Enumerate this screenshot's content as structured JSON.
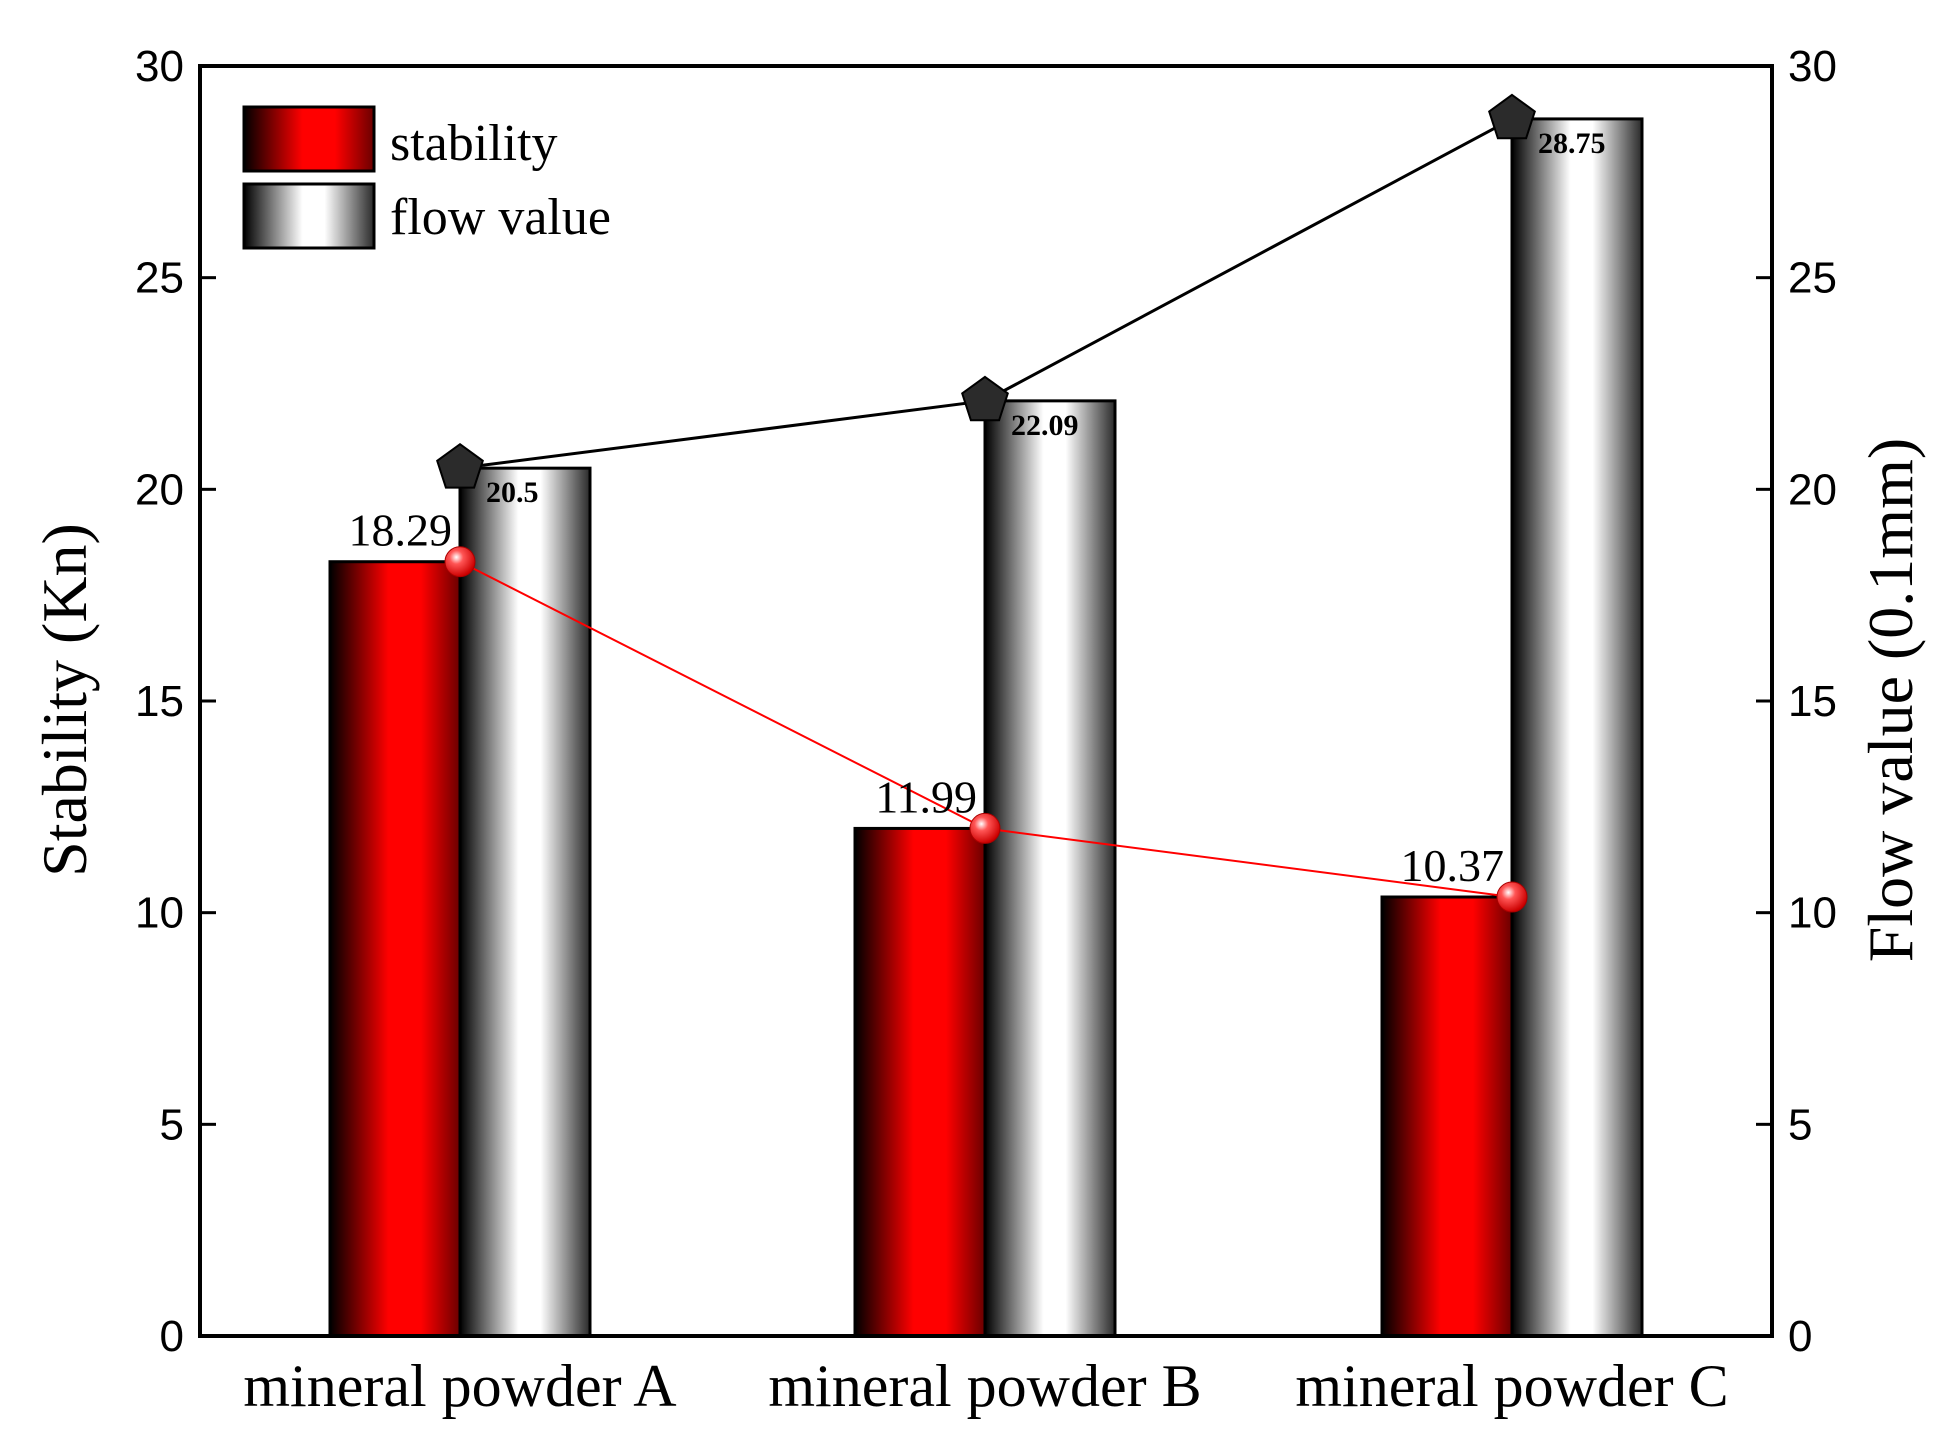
{
  "chart_data": {
    "type": "bar",
    "categories": [
      "mineral powder A",
      "mineral powder B",
      "mineral powder C"
    ],
    "series": [
      {
        "name": "stability",
        "axis": "left",
        "values": [
          18.29,
          11.99,
          10.37
        ],
        "value_labels": [
          "18.29",
          "11.99",
          "10.37"
        ],
        "color": "#ff0000"
      },
      {
        "name": "flow value",
        "axis": "right",
        "values": [
          20.5,
          22.09,
          28.75
        ],
        "value_labels": [
          "20.5",
          "22.09",
          "28.75"
        ],
        "color": "#ffffff"
      }
    ],
    "overlay_lines": [
      {
        "series": "stability",
        "line_color": "#ff0000",
        "marker": "sphere"
      },
      {
        "series": "flow value",
        "line_color": "#000000",
        "marker": "pentagon"
      }
    ],
    "ylabel_left": "Stability (Kn)",
    "ylabel_right": "Flow value (0.1mm)",
    "ylim": [
      0,
      30
    ],
    "y_ticks": [
      "0",
      "5",
      "10",
      "15",
      "20",
      "25",
      "30"
    ],
    "grid": false,
    "legend": {
      "position": "top-left",
      "entries": [
        "stability",
        "flow value"
      ]
    }
  }
}
